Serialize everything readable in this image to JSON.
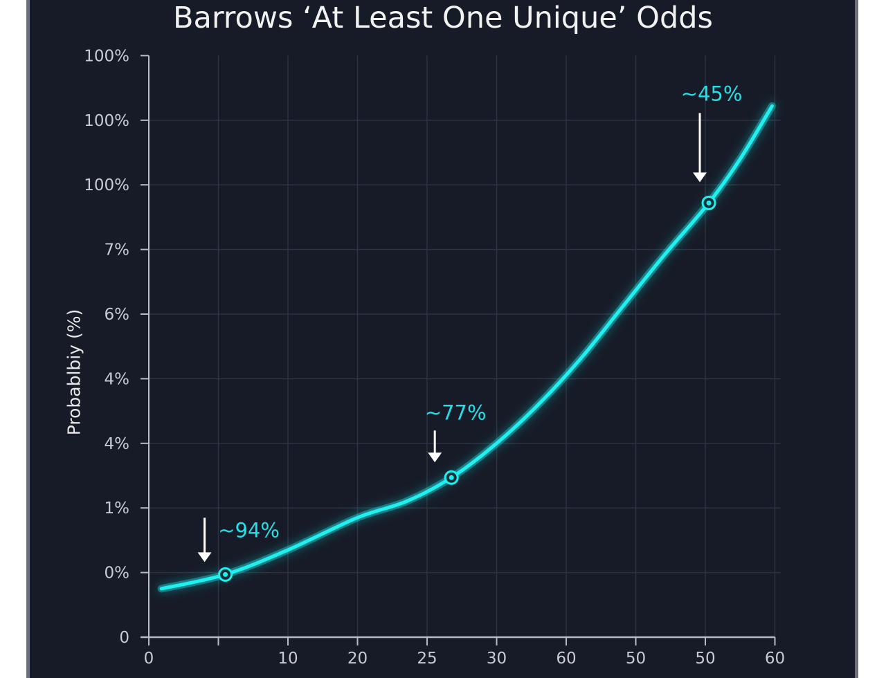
{
  "chart_data": {
    "type": "line",
    "title": "Barrows ‘At Least One Unique’ Odds",
    "xlabel": "",
    "ylabel": "Probablbiy (%)",
    "x_tick_labels": [
      "0",
      "",
      "10",
      "20",
      "25",
      "30",
      "60",
      "50",
      "50",
      "60"
    ],
    "y_tick_labels": [
      "0",
      "0%",
      "1%",
      "4%",
      "4%",
      "6%",
      "7%",
      "100%",
      "100%",
      "100%"
    ],
    "grid": true,
    "colors": {
      "line": "#1ff0f0",
      "background": "#161b27",
      "axis": "#b8bcc4",
      "grid": "#2c3342",
      "annotation": "#22e0e8"
    },
    "series": [
      {
        "points": [
          {
            "x": 0.18,
            "y": 0.75
          },
          {
            "x": 1.1,
            "y": 0.97
          },
          {
            "x": 2.0,
            "y": 1.35
          },
          {
            "x": 3.0,
            "y": 1.85
          },
          {
            "x": 3.7,
            "y": 2.1
          },
          {
            "x": 4.35,
            "y": 2.47
          },
          {
            "x": 5.0,
            "y": 3.0
          },
          {
            "x": 5.6,
            "y": 3.6
          },
          {
            "x": 6.2,
            "y": 4.3
          },
          {
            "x": 6.8,
            "y": 5.1
          },
          {
            "x": 7.4,
            "y": 5.9
          },
          {
            "x": 8.05,
            "y": 6.72
          },
          {
            "x": 8.5,
            "y": 7.4
          },
          {
            "x": 8.96,
            "y": 8.22
          }
        ]
      }
    ],
    "annotations": [
      {
        "text": "~94%",
        "x": 1.1,
        "y": 0.97
      },
      {
        "text": "~77%",
        "x": 4.35,
        "y": 2.47
      },
      {
        "text": "~45%",
        "x": 8.05,
        "y": 6.72
      }
    ]
  }
}
